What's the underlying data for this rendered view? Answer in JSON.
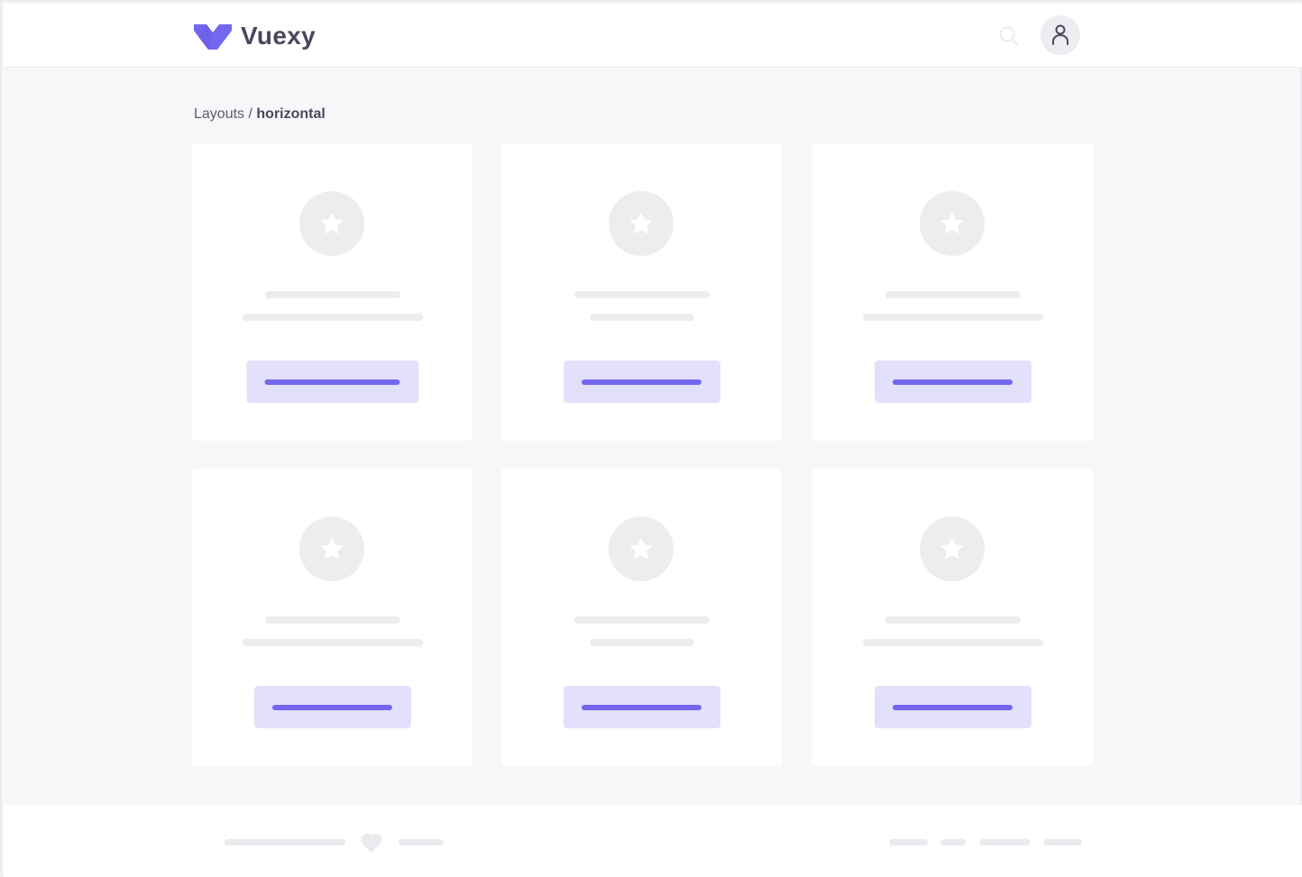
{
  "header": {
    "brand": "Vuexy",
    "logo_icon": "vuexy-logo",
    "search_icon": "search-icon",
    "avatar_icon": "user-icon"
  },
  "breadcrumb": {
    "parent": "Layouts",
    "separator": "/",
    "current": "horizontal"
  },
  "colors": {
    "accent": "#7367f0",
    "accent_light": "#e3e0fc",
    "skeleton": "#ededf0",
    "background": "#f7f7f9"
  },
  "cards": [
    {
      "icon": "star-icon"
    },
    {
      "icon": "star-icon"
    },
    {
      "icon": "star-icon"
    },
    {
      "icon": "star-icon"
    },
    {
      "icon": "star-icon"
    },
    {
      "icon": "star-icon"
    }
  ],
  "footer": {
    "icon": "heart-icon"
  }
}
